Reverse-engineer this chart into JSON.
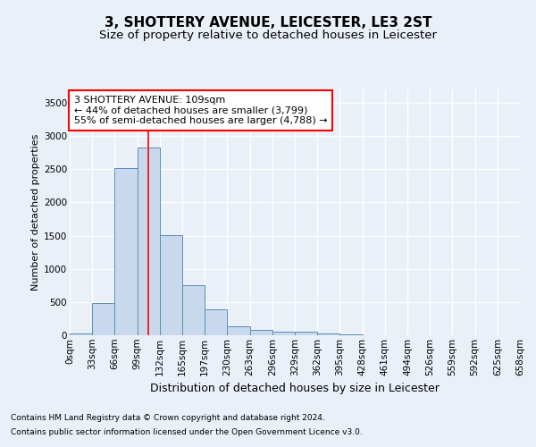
{
  "title": "3, SHOTTERY AVENUE, LEICESTER, LE3 2ST",
  "subtitle": "Size of property relative to detached houses in Leicester",
  "xlabel": "Distribution of detached houses by size in Leicester",
  "ylabel": "Number of detached properties",
  "bar_values": [
    25,
    480,
    2510,
    2820,
    1510,
    750,
    385,
    140,
    75,
    55,
    55,
    25,
    10,
    5,
    2,
    1,
    1,
    0,
    0,
    0
  ],
  "bin_labels": [
    "0sqm",
    "33sqm",
    "66sqm",
    "99sqm",
    "132sqm",
    "165sqm",
    "197sqm",
    "230sqm",
    "263sqm",
    "296sqm",
    "329sqm",
    "362sqm",
    "395sqm",
    "428sqm",
    "461sqm",
    "494sqm",
    "526sqm",
    "559sqm",
    "592sqm",
    "625sqm",
    "658sqm"
  ],
  "bar_color": "#c9d9ed",
  "bar_edge_color": "#5b8db8",
  "vline_x": 3.5,
  "vline_color": "red",
  "annotation_text": "3 SHOTTERY AVENUE: 109sqm\n← 44% of detached houses are smaller (3,799)\n55% of semi-detached houses are larger (4,788) →",
  "annotation_box_color": "white",
  "annotation_edge_color": "red",
  "ylim": [
    0,
    3700
  ],
  "yticks": [
    0,
    500,
    1000,
    1500,
    2000,
    2500,
    3000,
    3500
  ],
  "bg_color": "#eaf0f8",
  "plot_bg_color": "#eaf0f8",
  "grid_color": "white",
  "footnote1": "Contains HM Land Registry data © Crown copyright and database right 2024.",
  "footnote2": "Contains public sector information licensed under the Open Government Licence v3.0.",
  "title_fontsize": 11,
  "subtitle_fontsize": 9.5,
  "xlabel_fontsize": 9,
  "ylabel_fontsize": 8,
  "tick_fontsize": 7.5,
  "annotation_fontsize": 8,
  "footnote_fontsize": 6.5
}
